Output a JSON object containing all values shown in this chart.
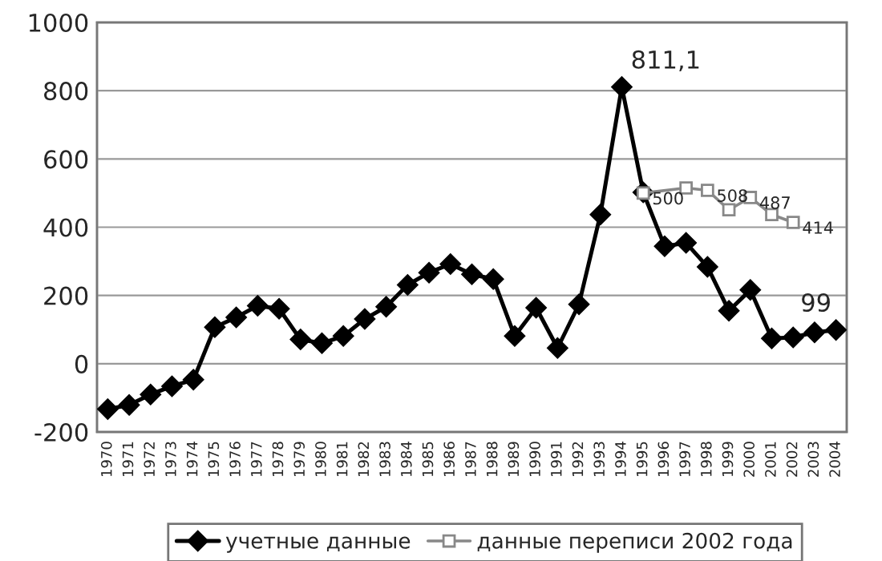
{
  "chart_data": {
    "type": "line",
    "categories": [
      "1970",
      "1971",
      "1972",
      "1973",
      "1974",
      "1975",
      "1976",
      "1977",
      "1978",
      "1979",
      "1980",
      "1981",
      "1982",
      "1983",
      "1984",
      "1985",
      "1986",
      "1987",
      "1988",
      "1989",
      "1990",
      "1991",
      "1992",
      "1993",
      "1994",
      "1995",
      "1996",
      "1997",
      "1998",
      "1999",
      "2000",
      "2001",
      "2002",
      "2003",
      "2004"
    ],
    "series": [
      {
        "name": "учетные данные",
        "color": "#000000",
        "marker": "diamond",
        "values": [
          -133,
          -121,
          -90,
          -66,
          -47,
          107,
          136,
          170,
          161,
          71,
          60,
          81,
          131,
          167,
          231,
          267,
          292,
          262,
          248,
          81,
          164,
          46,
          174,
          437,
          811.1,
          502,
          344,
          354,
          284,
          155,
          216,
          74,
          77,
          92,
          99
        ],
        "value_labels": [
          null,
          null,
          null,
          null,
          null,
          null,
          null,
          null,
          null,
          null,
          null,
          null,
          null,
          null,
          null,
          null,
          null,
          null,
          null,
          null,
          null,
          null,
          null,
          null,
          "811,1",
          null,
          null,
          null,
          null,
          null,
          null,
          null,
          null,
          null,
          "99"
        ]
      },
      {
        "name": "данные переписи 2002 года",
        "color": "#888888",
        "marker": "square",
        "values": [
          null,
          null,
          null,
          null,
          null,
          null,
          null,
          null,
          null,
          null,
          null,
          null,
          null,
          null,
          null,
          null,
          null,
          null,
          null,
          null,
          null,
          null,
          null,
          null,
          null,
          500,
          null,
          515,
          508,
          451,
          487,
          437,
          414,
          null,
          null
        ],
        "value_labels": [
          null,
          null,
          null,
          null,
          null,
          null,
          null,
          null,
          null,
          null,
          null,
          null,
          null,
          null,
          null,
          null,
          null,
          null,
          null,
          null,
          null,
          null,
          null,
          null,
          null,
          "500",
          null,
          null,
          "508",
          null,
          "487",
          null,
          "414",
          null,
          null
        ]
      }
    ],
    "ylim": [
      -200,
      1000
    ],
    "yticks": [
      -200,
      0,
      200,
      400,
      600,
      800,
      1000
    ],
    "grid": "y",
    "legend": "bottom",
    "line_style": "solid"
  }
}
